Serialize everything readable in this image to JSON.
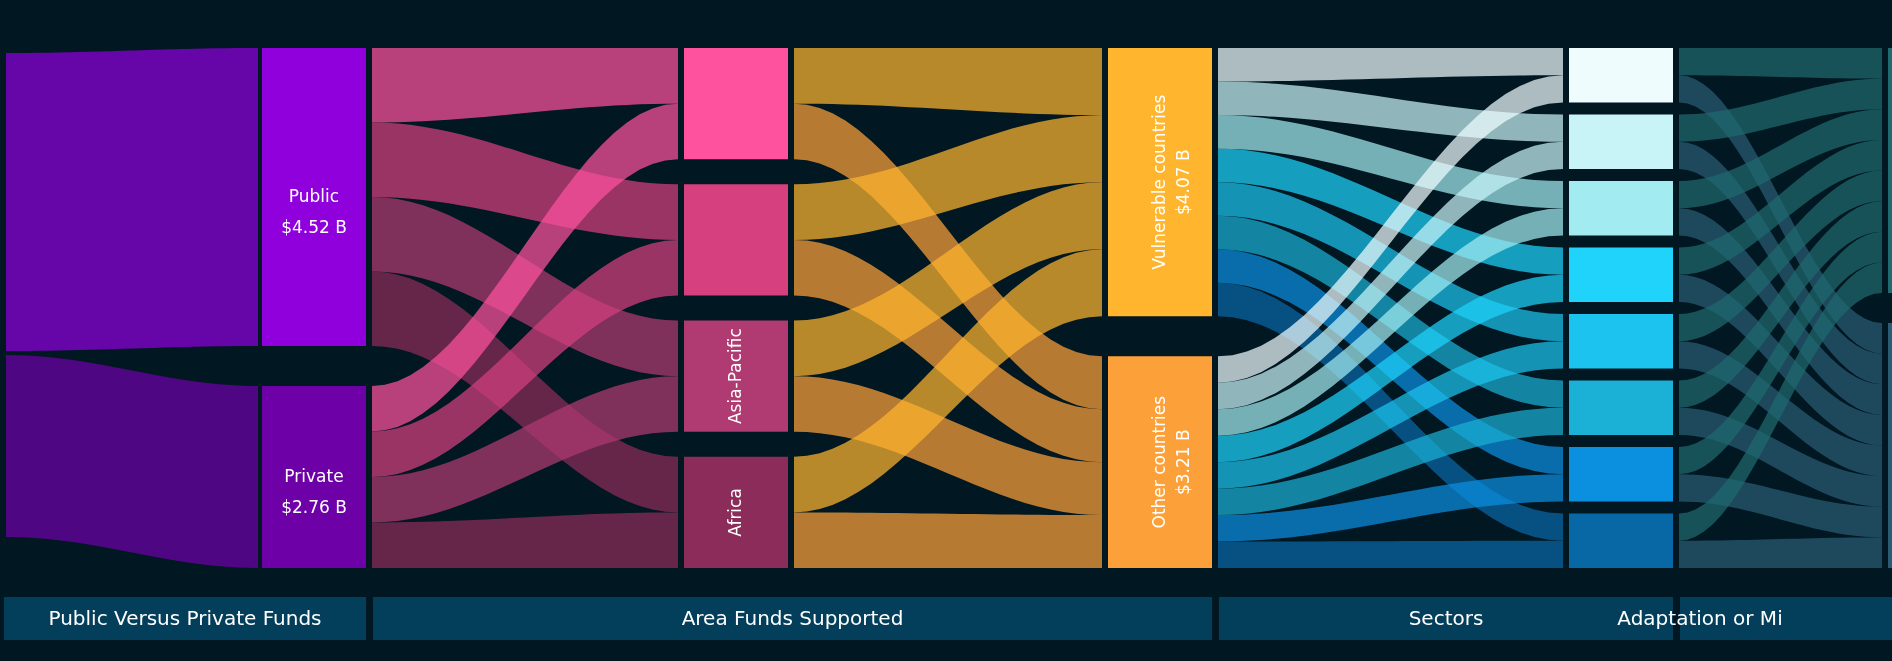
{
  "chart_data": {
    "type": "other",
    "categories": [
      "Public",
      "Private",
      null,
      null,
      "Asia-Pacific",
      "Africa",
      "Vulnerable countries",
      "Other countries",
      null,
      null,
      null,
      null,
      null,
      null,
      null,
      null,
      null,
      null
    ],
    "values": [
      4.52,
      2.76,
      null,
      null,
      null,
      null,
      4.07,
      3.21,
      null,
      null,
      null,
      null,
      null,
      null,
      null,
      null,
      null,
      null
    ],
    "value_labels": [
      "$4.52 B",
      "$2.76 B",
      null,
      null,
      null,
      null,
      "$4.07 B",
      "$3.21 B",
      null,
      null,
      null,
      null,
      null,
      null,
      null,
      null,
      null,
      null
    ],
    "colors": [
      "#8f00dc",
      "#6e00a8",
      "#ff529e",
      "#d6407f",
      "#b03a72",
      "#8c2c5a",
      "#ffb52e",
      "#fca13a",
      "#eefcfd",
      "#c8f4f8",
      "#a2ebf1",
      "#1fd3fb",
      "#1cc3ee",
      "#1bb0d6",
      "#0b8fdf",
      "#0868a6",
      "#1f6a6e",
      "#2a5d75"
    ],
    "annotations": [
      "Public Versus Private Funds",
      "Area Funds Supported",
      "Sectors",
      "Adaptation or Mi"
    ]
  }
}
